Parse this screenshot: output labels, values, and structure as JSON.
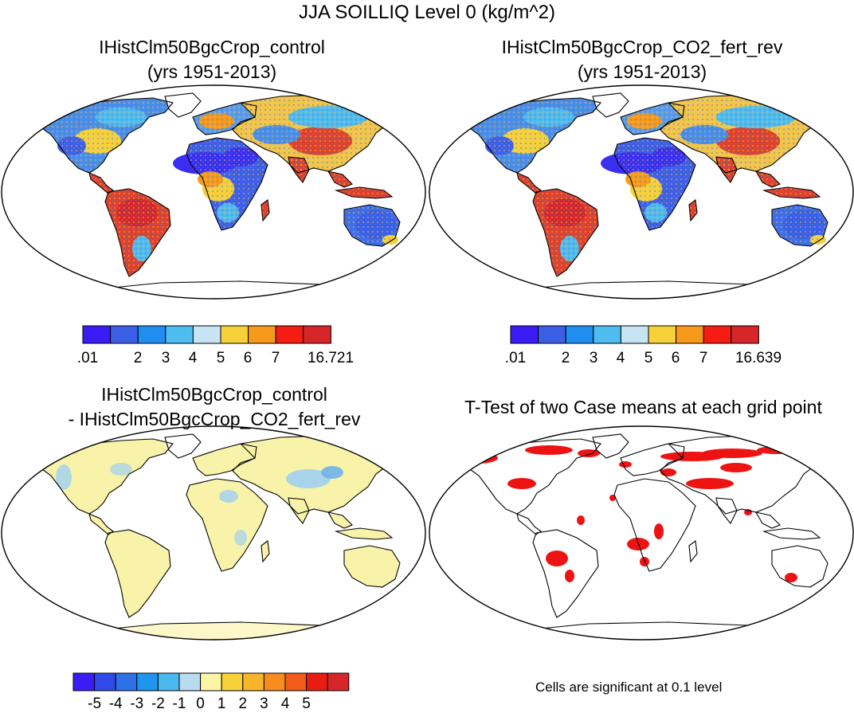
{
  "title": "JJA SOILLIQ Level 0 (kg/m^2)",
  "panels": [
    {
      "title_line1": "IHistClm50BgcCrop_control",
      "title_line2": "(yrs 1951-2013)"
    },
    {
      "title_line1": "IHistClm50BgcCrop_CO2_fert_rev",
      "title_line2": "(yrs 1951-2013)"
    },
    {
      "title_line1": "IHistClm50BgcCrop_control",
      "title_line2": "- IHistClm50BgcCrop_CO2_fert_rev"
    },
    {
      "title_line1": "T-Test of two Case means at each grid point",
      "title_line2": ""
    }
  ],
  "colorbars": {
    "abs": {
      "colors": [
        "#3b1cf5",
        "#3b5ee6",
        "#1f8ef0",
        "#4fbcf0",
        "#c6e4f4",
        "#f7d13a",
        "#f79a1c",
        "#f51c14",
        "#d7262a"
      ]
    },
    "abs_control_labels": [
      ".01",
      "2",
      "3",
      "4",
      "5",
      "6",
      "7",
      "16.721"
    ],
    "abs_fert_labels": [
      ".01",
      "2",
      "3",
      "4",
      "5",
      "6",
      "7",
      "16.639"
    ],
    "diff": {
      "colors": [
        "#3b1cf5",
        "#2f4ae8",
        "#2d71e9",
        "#1f95ef",
        "#4cb8f0",
        "#b8dcef",
        "#faf4a4",
        "#f7d13a",
        "#f7b52a",
        "#f78c1f",
        "#f15c1a",
        "#e81c13",
        "#d7262a"
      ],
      "labels": [
        "-5",
        "-4",
        "-3",
        "-2",
        "-1",
        "0",
        "1",
        "2",
        "3",
        "4",
        "5"
      ]
    }
  },
  "significance_note": "Cells are significant at 0.1 level",
  "map_colors": {
    "outline": "#000000",
    "diff_fill": "#f8f3a9",
    "diff_neg": "#9fd0f0",
    "signif": "#ee1313",
    "wet": "#e0412a",
    "mid": "#f3c54a",
    "dry": "#3f6ee8",
    "verydry": "#3a2ef0"
  }
}
